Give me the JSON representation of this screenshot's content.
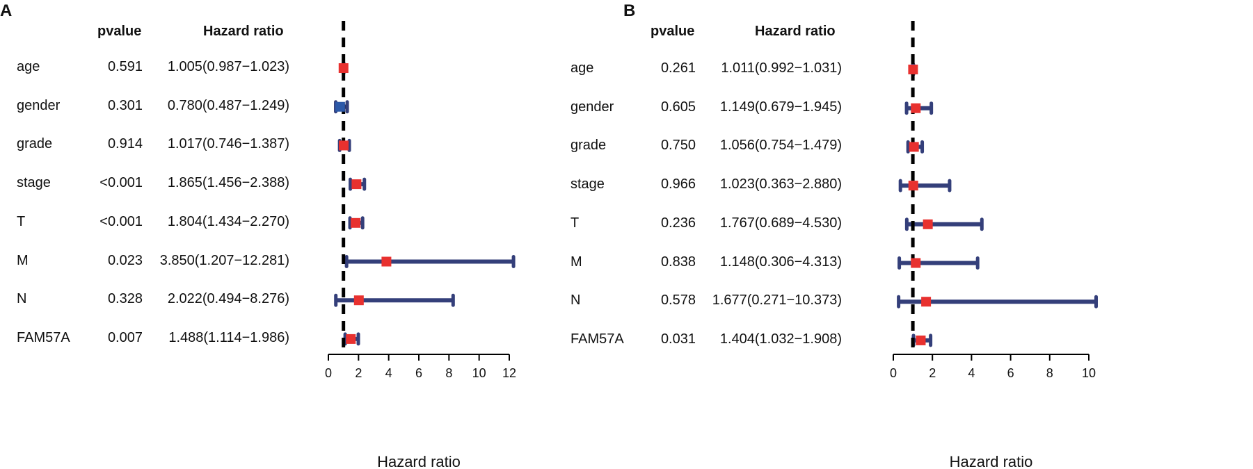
{
  "chart_data": [
    {
      "type": "forest",
      "panel": "A",
      "col_pvalue": "pvalue",
      "col_hr": "Hazard ratio",
      "xlabel": "Hazard ratio",
      "xlim": [
        0,
        12
      ],
      "xticks": [
        "0",
        "2",
        "4",
        "6",
        "8",
        "10",
        "12"
      ],
      "reference": 1,
      "rows": [
        {
          "name": "age",
          "pvalue": "0.591",
          "hr_text": "1.005(0.987−1.023)",
          "hr": 1.005,
          "lo": 0.987,
          "hi": 1.023,
          "color": "#e8312f"
        },
        {
          "name": "gender",
          "pvalue": "0.301",
          "hr_text": "0.780(0.487−1.249)",
          "hr": 0.78,
          "lo": 0.487,
          "hi": 1.249,
          "color": "#2c58a8"
        },
        {
          "name": "grade",
          "pvalue": "0.914",
          "hr_text": "1.017(0.746−1.387)",
          "hr": 1.017,
          "lo": 0.746,
          "hi": 1.387,
          "color": "#e8312f"
        },
        {
          "name": "stage",
          "pvalue": "<0.001",
          "hr_text": "1.865(1.456−2.388)",
          "hr": 1.865,
          "lo": 1.456,
          "hi": 2.388,
          "color": "#e8312f"
        },
        {
          "name": "T",
          "pvalue": "<0.001",
          "hr_text": "1.804(1.434−2.270)",
          "hr": 1.804,
          "lo": 1.434,
          "hi": 2.27,
          "color": "#e8312f"
        },
        {
          "name": "M",
          "pvalue": "0.023",
          "hr_text": "3.850(1.207−12.281)",
          "hr": 3.85,
          "lo": 1.207,
          "hi": 12.281,
          "color": "#e8312f"
        },
        {
          "name": "N",
          "pvalue": "0.328",
          "hr_text": "2.022(0.494−8.276)",
          "hr": 2.022,
          "lo": 0.494,
          "hi": 8.276,
          "color": "#e8312f"
        },
        {
          "name": "FAM57A",
          "pvalue": "0.007",
          "hr_text": "1.488(1.114−1.986)",
          "hr": 1.488,
          "lo": 1.114,
          "hi": 1.986,
          "color": "#e8312f"
        }
      ]
    },
    {
      "type": "forest",
      "panel": "B",
      "col_pvalue": "pvalue",
      "col_hr": "Hazard ratio",
      "xlabel": "Hazard ratio",
      "xlim": [
        0,
        10
      ],
      "xticks": [
        "0",
        "2",
        "4",
        "6",
        "8",
        "10"
      ],
      "reference": 1,
      "rows": [
        {
          "name": "age",
          "pvalue": "0.261",
          "hr_text": "1.011(0.992−1.031)",
          "hr": 1.011,
          "lo": 0.992,
          "hi": 1.031,
          "color": "#e8312f"
        },
        {
          "name": "gender",
          "pvalue": "0.605",
          "hr_text": "1.149(0.679−1.945)",
          "hr": 1.149,
          "lo": 0.679,
          "hi": 1.945,
          "color": "#e8312f"
        },
        {
          "name": "grade",
          "pvalue": "0.750",
          "hr_text": "1.056(0.754−1.479)",
          "hr": 1.056,
          "lo": 0.754,
          "hi": 1.479,
          "color": "#e8312f"
        },
        {
          "name": "stage",
          "pvalue": "0.966",
          "hr_text": "1.023(0.363−2.880)",
          "hr": 1.023,
          "lo": 0.363,
          "hi": 2.88,
          "color": "#e8312f"
        },
        {
          "name": "T",
          "pvalue": "0.236",
          "hr_text": "1.767(0.689−4.530)",
          "hr": 1.767,
          "lo": 0.689,
          "hi": 4.53,
          "color": "#e8312f"
        },
        {
          "name": "M",
          "pvalue": "0.838",
          "hr_text": "1.148(0.306−4.313)",
          "hr": 1.148,
          "lo": 0.306,
          "hi": 4.313,
          "color": "#e8312f"
        },
        {
          "name": "N",
          "pvalue": "0.578",
          "hr_text": "1.677(0.271−10.373)",
          "hr": 1.677,
          "lo": 0.271,
          "hi": 10.373,
          "color": "#e8312f"
        },
        {
          "name": "FAM57A",
          "pvalue": "0.031",
          "hr_text": "1.404(1.032−1.908)",
          "hr": 1.404,
          "lo": 1.032,
          "hi": 1.908,
          "color": "#e8312f"
        }
      ]
    }
  ],
  "colors": {
    "ci_line": "#343f7a",
    "reference_line": "#000000"
  }
}
